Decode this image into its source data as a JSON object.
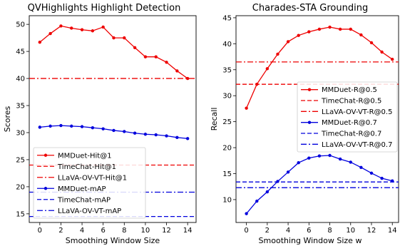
{
  "chart_data": [
    {
      "type": "line",
      "title": "QVHighlights Highlight Detection",
      "xlabel": "Smoothing Window Size",
      "ylabel": "Scores",
      "xlim": [
        -1,
        14.8
      ],
      "ylim": [
        13.4,
        51.6
      ],
      "xticks": [
        0,
        2,
        4,
        6,
        8,
        10,
        12,
        14
      ],
      "yticks": [
        15,
        20,
        25,
        30,
        35,
        40,
        45,
        50
      ],
      "grid": false,
      "legend_position": "lower-left",
      "x": [
        0,
        1,
        2,
        3,
        4,
        5,
        6,
        7,
        8,
        9,
        10,
        11,
        12,
        13,
        14
      ],
      "series": [
        {
          "name": "MMDuet-Hit@1",
          "color": "#ee0000",
          "style": "solid",
          "marker": "dot",
          "values": [
            46.7,
            48.3,
            49.7,
            49.3,
            49.0,
            48.8,
            49.5,
            47.5,
            47.5,
            45.7,
            44.0,
            44.0,
            43.0,
            41.4,
            40.0
          ]
        },
        {
          "name": "TimeChat-Hit@1",
          "color": "#ee0000",
          "style": "dashed",
          "marker": "none",
          "hline": 24.0
        },
        {
          "name": "LLaVA-OV-VT-Hit@1",
          "color": "#ee0000",
          "style": "dashdot",
          "marker": "none",
          "hline": 40.0
        },
        {
          "name": "MMDuet-mAP",
          "color": "#0000dd",
          "style": "solid",
          "marker": "dot",
          "values": [
            31.0,
            31.2,
            31.3,
            31.2,
            31.1,
            30.9,
            30.7,
            30.4,
            30.2,
            29.9,
            29.7,
            29.6,
            29.4,
            29.1,
            28.9
          ]
        },
        {
          "name": "TimeChat-mAP",
          "color": "#0000dd",
          "style": "dashed",
          "marker": "none",
          "hline": 14.5
        },
        {
          "name": "LLaVA-OV-VT-mAP",
          "color": "#0000dd",
          "style": "dashdot",
          "marker": "none",
          "hline": 19.0
        }
      ]
    },
    {
      "type": "line",
      "title": "Charades-STA Grounding",
      "xlabel": "Smoothing Window Size w",
      "ylabel": "Recall",
      "xlim": [
        -1,
        14.6
      ],
      "ylim": [
        5.6,
        45.4
      ],
      "xticks": [
        0,
        2,
        4,
        6,
        8,
        10,
        12,
        14
      ],
      "yticks": [
        10,
        15,
        20,
        25,
        30,
        35,
        40,
        45
      ],
      "grid": false,
      "legend_position": "center-right",
      "x": [
        0,
        1,
        2,
        3,
        4,
        5,
        6,
        7,
        8,
        9,
        10,
        11,
        12,
        13,
        14
      ],
      "series": [
        {
          "name": "MMDuet-R@0.5",
          "color": "#ee0000",
          "style": "solid",
          "marker": "dot",
          "values": [
            27.6,
            32.2,
            35.2,
            38.0,
            40.4,
            41.6,
            42.3,
            42.8,
            43.2,
            42.8,
            42.8,
            41.7,
            40.2,
            38.4,
            37.0
          ]
        },
        {
          "name": "TimeChat-R@0.5",
          "color": "#ee0000",
          "style": "dashed",
          "marker": "none",
          "hline": 32.2
        },
        {
          "name": "LLaVA-OV-VT-R@0.5",
          "color": "#ee0000",
          "style": "dashdot",
          "marker": "none",
          "hline": 36.5
        },
        {
          "name": "MMDuet-R@0.7",
          "color": "#0000dd",
          "style": "solid",
          "marker": "dot",
          "values": [
            7.3,
            9.7,
            11.5,
            13.5,
            15.3,
            17.1,
            18.0,
            18.4,
            18.5,
            17.8,
            17.2,
            16.2,
            15.1,
            14.1,
            13.6
          ]
        },
        {
          "name": "TimeChat-R@0.7",
          "color": "#0000dd",
          "style": "dashed",
          "marker": "none",
          "hline": 13.4
        },
        {
          "name": "LLaVA-OV-VT-R@0.7",
          "color": "#0000dd",
          "style": "dashdot",
          "marker": "none",
          "hline": 12.3
        }
      ]
    }
  ]
}
